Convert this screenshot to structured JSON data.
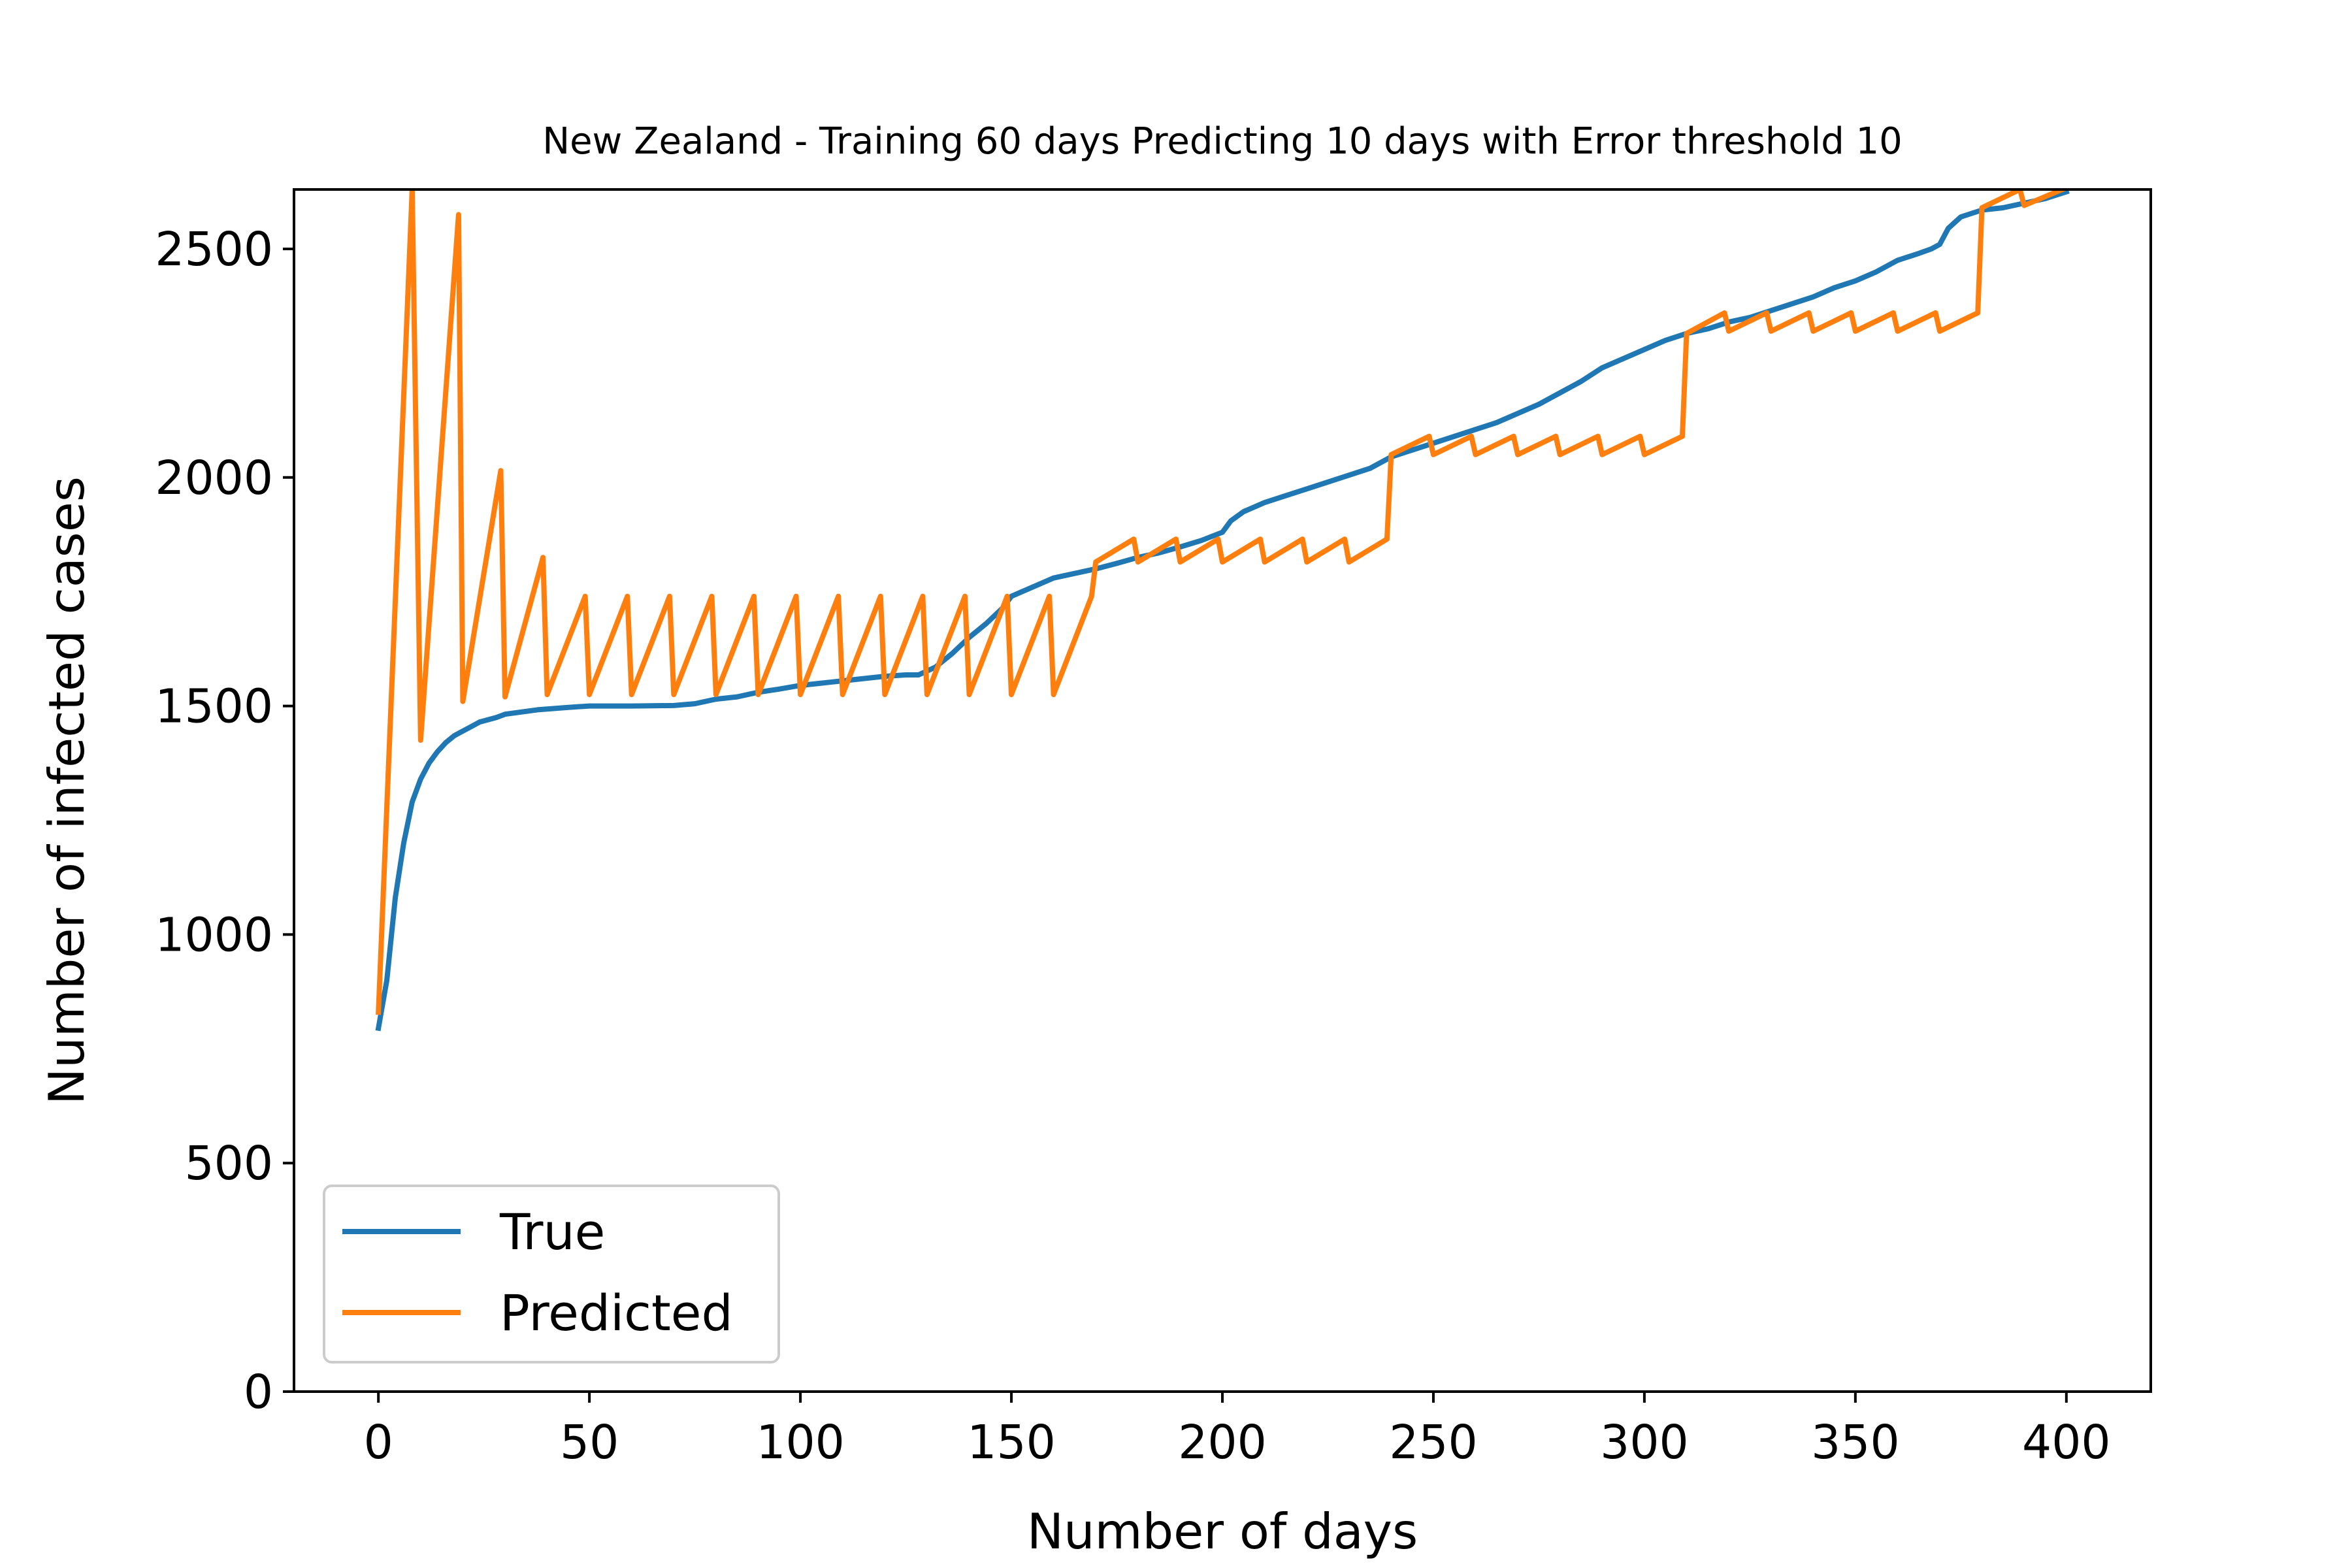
{
  "chart_data": {
    "type": "line",
    "title": "New Zealand - Training 60 days Predicting 10 days with Error threshold 10",
    "xlabel": "Number of days",
    "ylabel": "Number of infected cases",
    "xlim": [
      -20,
      420
    ],
    "ylim": [
      0,
      2630
    ],
    "xticks": [
      0,
      50,
      100,
      150,
      200,
      250,
      300,
      350,
      400
    ],
    "yticks": [
      0,
      500,
      1000,
      1500,
      2000,
      2500
    ],
    "xtick_labels": [
      "0",
      "50",
      "100",
      "150",
      "200",
      "250",
      "300",
      "350",
      "400"
    ],
    "ytick_labels": [
      "0",
      "500",
      "1000",
      "1500",
      "2000",
      "2500"
    ],
    "grid": false,
    "legend_position": "lower-left",
    "series": [
      {
        "name": "True",
        "color": "#1f77b4",
        "points": [
          [
            0,
            795
          ],
          [
            2,
            900
          ],
          [
            4,
            1080
          ],
          [
            6,
            1200
          ],
          [
            8,
            1290
          ],
          [
            10,
            1340
          ],
          [
            12,
            1375
          ],
          [
            14,
            1400
          ],
          [
            16,
            1420
          ],
          [
            18,
            1435
          ],
          [
            20,
            1445
          ],
          [
            22,
            1455
          ],
          [
            24,
            1465
          ],
          [
            26,
            1470
          ],
          [
            28,
            1475
          ],
          [
            30,
            1482
          ],
          [
            34,
            1487
          ],
          [
            38,
            1492
          ],
          [
            45,
            1497
          ],
          [
            50,
            1500
          ],
          [
            60,
            1500
          ],
          [
            70,
            1501
          ],
          [
            75,
            1505
          ],
          [
            80,
            1515
          ],
          [
            85,
            1520
          ],
          [
            90,
            1530
          ],
          [
            95,
            1537
          ],
          [
            100,
            1545
          ],
          [
            105,
            1550
          ],
          [
            110,
            1555
          ],
          [
            115,
            1560
          ],
          [
            120,
            1565
          ],
          [
            125,
            1568
          ],
          [
            128,
            1568
          ],
          [
            132,
            1585
          ],
          [
            136,
            1615
          ],
          [
            140,
            1650
          ],
          [
            144,
            1680
          ],
          [
            148,
            1715
          ],
          [
            150,
            1740
          ],
          [
            155,
            1760
          ],
          [
            160,
            1780
          ],
          [
            165,
            1790
          ],
          [
            170,
            1800
          ],
          [
            175,
            1812
          ],
          [
            180,
            1825
          ],
          [
            185,
            1835
          ],
          [
            190,
            1848
          ],
          [
            195,
            1862
          ],
          [
            200,
            1880
          ],
          [
            202,
            1905
          ],
          [
            205,
            1925
          ],
          [
            210,
            1945
          ],
          [
            215,
            1960
          ],
          [
            220,
            1975
          ],
          [
            225,
            1990
          ],
          [
            230,
            2005
          ],
          [
            235,
            2020
          ],
          [
            240,
            2045
          ],
          [
            245,
            2060
          ],
          [
            250,
            2075
          ],
          [
            255,
            2090
          ],
          [
            260,
            2105
          ],
          [
            265,
            2120
          ],
          [
            270,
            2140
          ],
          [
            275,
            2160
          ],
          [
            280,
            2185
          ],
          [
            285,
            2210
          ],
          [
            290,
            2240
          ],
          [
            295,
            2260
          ],
          [
            300,
            2280
          ],
          [
            305,
            2300
          ],
          [
            310,
            2315
          ],
          [
            315,
            2325
          ],
          [
            320,
            2340
          ],
          [
            325,
            2350
          ],
          [
            330,
            2365
          ],
          [
            335,
            2380
          ],
          [
            340,
            2395
          ],
          [
            345,
            2415
          ],
          [
            350,
            2430
          ],
          [
            355,
            2450
          ],
          [
            360,
            2475
          ],
          [
            365,
            2490
          ],
          [
            368,
            2500
          ],
          [
            370,
            2510
          ],
          [
            372,
            2545
          ],
          [
            375,
            2570
          ],
          [
            380,
            2585
          ],
          [
            385,
            2590
          ],
          [
            390,
            2600
          ],
          [
            395,
            2610
          ],
          [
            400,
            2625
          ]
        ]
      },
      {
        "name": "Predicted",
        "color": "#ff7f0e",
        "points": [
          [
            0,
            830
          ],
          [
            8,
            2630
          ],
          [
            10,
            1425
          ],
          [
            19,
            2575
          ],
          [
            20,
            1510
          ],
          [
            29,
            2015
          ],
          [
            30,
            1520
          ],
          [
            39,
            1825
          ],
          [
            40,
            1525
          ],
          [
            49,
            1740
          ],
          [
            50,
            1525
          ],
          [
            59,
            1740
          ],
          [
            60,
            1525
          ],
          [
            69,
            1740
          ],
          [
            70,
            1525
          ],
          [
            79,
            1740
          ],
          [
            80,
            1525
          ],
          [
            89,
            1740
          ],
          [
            90,
            1525
          ],
          [
            99,
            1740
          ],
          [
            100,
            1525
          ],
          [
            109,
            1740
          ],
          [
            110,
            1525
          ],
          [
            119,
            1740
          ],
          [
            120,
            1525
          ],
          [
            129,
            1740
          ],
          [
            130,
            1525
          ],
          [
            139,
            1740
          ],
          [
            140,
            1525
          ],
          [
            149,
            1740
          ],
          [
            150,
            1525
          ],
          [
            159,
            1740
          ],
          [
            160,
            1525
          ],
          [
            169,
            1740
          ],
          [
            170,
            1815
          ],
          [
            179,
            1865
          ],
          [
            180,
            1815
          ],
          [
            189,
            1865
          ],
          [
            190,
            1815
          ],
          [
            199,
            1865
          ],
          [
            200,
            1815
          ],
          [
            209,
            1865
          ],
          [
            210,
            1815
          ],
          [
            219,
            1865
          ],
          [
            220,
            1815
          ],
          [
            229,
            1865
          ],
          [
            230,
            1815
          ],
          [
            239,
            1865
          ],
          [
            240,
            2050
          ],
          [
            249,
            2090
          ],
          [
            250,
            2050
          ],
          [
            259,
            2090
          ],
          [
            260,
            2050
          ],
          [
            269,
            2090
          ],
          [
            270,
            2050
          ],
          [
            279,
            2090
          ],
          [
            280,
            2050
          ],
          [
            289,
            2090
          ],
          [
            290,
            2050
          ],
          [
            299,
            2090
          ],
          [
            300,
            2050
          ],
          [
            309,
            2090
          ],
          [
            310,
            2315
          ],
          [
            319,
            2360
          ],
          [
            320,
            2320
          ],
          [
            329,
            2360
          ],
          [
            330,
            2320
          ],
          [
            339,
            2360
          ],
          [
            340,
            2320
          ],
          [
            349,
            2360
          ],
          [
            350,
            2320
          ],
          [
            359,
            2360
          ],
          [
            360,
            2320
          ],
          [
            369,
            2360
          ],
          [
            370,
            2320
          ],
          [
            379,
            2360
          ],
          [
            380,
            2590
          ],
          [
            389,
            2630
          ],
          [
            390,
            2595
          ],
          [
            399,
            2630
          ]
        ]
      }
    ]
  }
}
